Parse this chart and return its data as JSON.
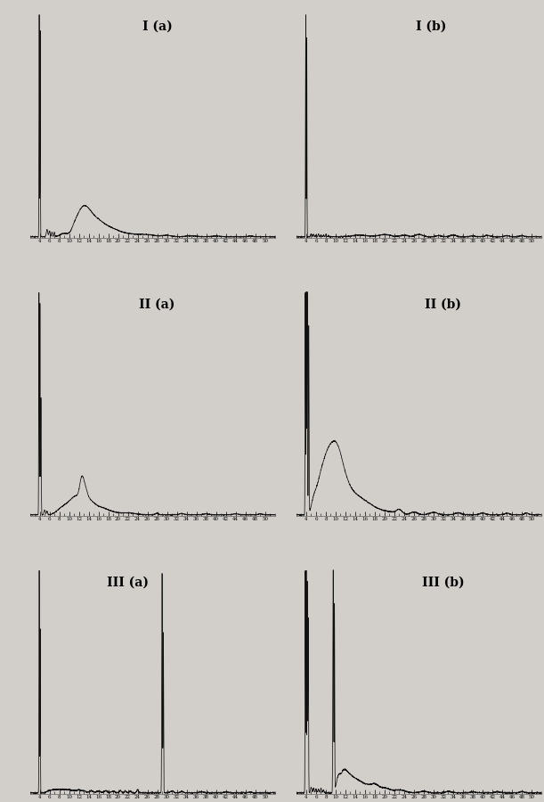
{
  "background_color": "#d2ceca",
  "panel_bg": "#d2ceca",
  "line_color": "#111111",
  "titles": [
    "I (a)",
    "I (b)",
    "II (a)",
    "II (b)",
    "III (a)",
    "III (b)"
  ],
  "title_fontsize": 10,
  "tick_fontsize": 4,
  "xlim": [
    2,
    52
  ],
  "figsize": [
    6.11,
    9.0
  ],
  "dpi": 100,
  "ylim": [
    0,
    10.0
  ],
  "spike_height": 9.5
}
